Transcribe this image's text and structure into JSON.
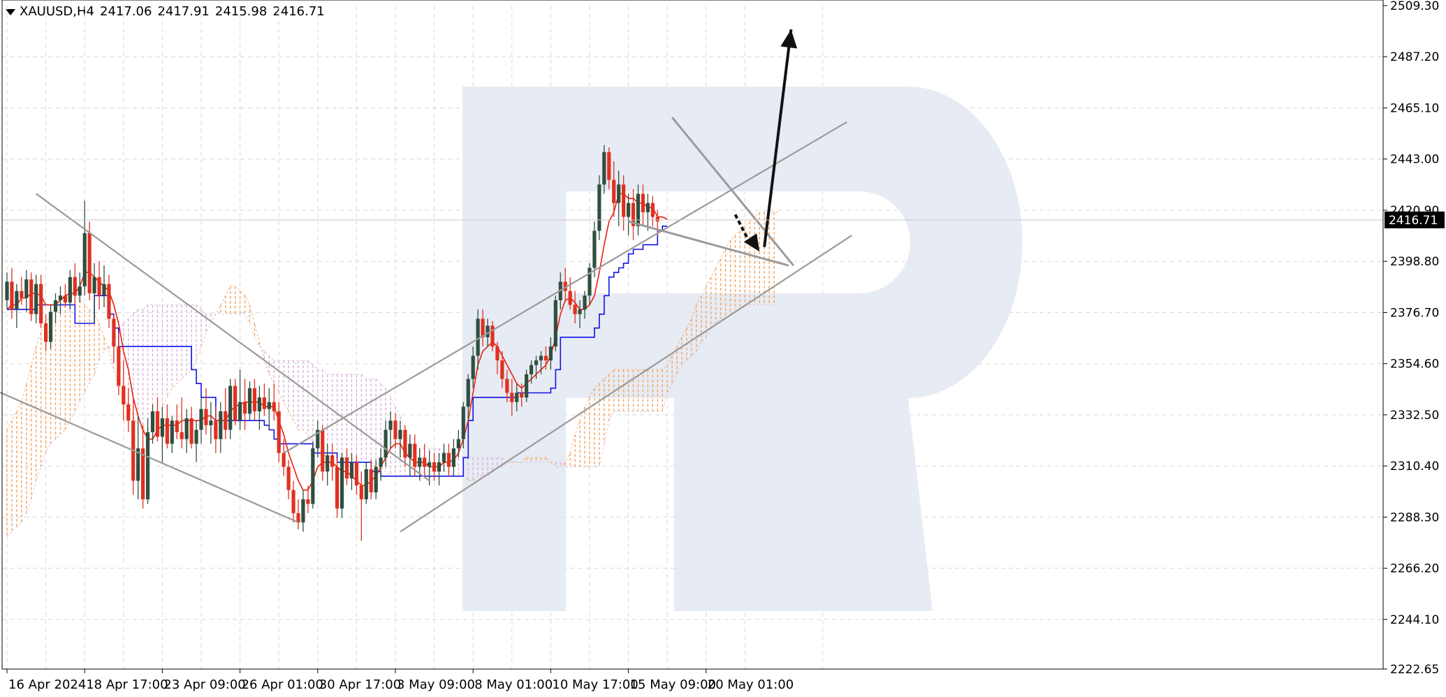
{
  "header": {
    "symbol": "XAUUSD,H4",
    "open": "2417.06",
    "high": "2417.91",
    "low": "2415.98",
    "close": "2416.71"
  },
  "chart_data": {
    "type": "candlestick",
    "symbol": "XAUUSD",
    "timeframe": "H4",
    "ylim": [
      2222.65,
      2509.3
    ],
    "y_ticks": [
      "2509.30",
      "2487.20",
      "2465.10",
      "2443.00",
      "2420.90",
      "2398.80",
      "2376.70",
      "2354.60",
      "2332.50",
      "2310.40",
      "2288.30",
      "2266.20",
      "2244.10",
      "2222.65"
    ],
    "x_ticks": [
      "16 Apr 2024",
      "18 Apr 17:00",
      "23 Apr 09:00",
      "26 Apr 01:00",
      "30 Apr 17:00",
      "3 May 09:00",
      "8 May 01:00",
      "10 May 17:00",
      "15 May 09:00",
      "20 May 01:00"
    ],
    "x_tick_bars": [
      0,
      16,
      32,
      48,
      64,
      80,
      96,
      112,
      128,
      144
    ],
    "current_price": "2416.71",
    "colors": {
      "bull": "#2f4f3f",
      "bear": "#e03020",
      "tenkan": "#e82010",
      "kijun": "#1010e8",
      "cloud_up": "#f4a460",
      "cloud_down": "#d8b0d8",
      "trend": "#9a9a9a",
      "arrow": "#111111",
      "grid": "#d8d8d8"
    },
    "candles": [
      [
        2382,
        2394,
        2378,
        2390
      ],
      [
        2390,
        2396,
        2374,
        2378
      ],
      [
        2378,
        2389,
        2370,
        2386
      ],
      [
        2386,
        2392,
        2380,
        2383
      ],
      [
        2383,
        2395,
        2377,
        2391
      ],
      [
        2391,
        2394,
        2373,
        2376
      ],
      [
        2376,
        2393,
        2372,
        2389
      ],
      [
        2389,
        2393,
        2370,
        2372
      ],
      [
        2372,
        2376,
        2360,
        2364
      ],
      [
        2364,
        2380,
        2361,
        2377
      ],
      [
        2377,
        2385,
        2372,
        2382
      ],
      [
        2382,
        2388,
        2376,
        2384
      ],
      [
        2384,
        2389,
        2379,
        2381
      ],
      [
        2381,
        2395,
        2378,
        2392
      ],
      [
        2392,
        2398,
        2380,
        2384
      ],
      [
        2384,
        2394,
        2381,
        2388
      ],
      [
        2388,
        2425,
        2384,
        2411
      ],
      [
        2411,
        2416,
        2382,
        2385
      ],
      [
        2385,
        2398,
        2372,
        2392
      ],
      [
        2392,
        2399,
        2378,
        2384
      ],
      [
        2384,
        2397,
        2379,
        2389
      ],
      [
        2389,
        2393,
        2370,
        2374
      ],
      [
        2374,
        2376,
        2355,
        2362
      ],
      [
        2362,
        2368,
        2341,
        2345
      ],
      [
        2345,
        2356,
        2330,
        2337
      ],
      [
        2337,
        2344,
        2325,
        2330
      ],
      [
        2330,
        2339,
        2298,
        2304
      ],
      [
        2304,
        2332,
        2296,
        2318
      ],
      [
        2318,
        2328,
        2292,
        2296
      ],
      [
        2296,
        2331,
        2294,
        2325
      ],
      [
        2325,
        2337,
        2320,
        2334
      ],
      [
        2334,
        2340,
        2321,
        2323
      ],
      [
        2323,
        2336,
        2312,
        2331
      ],
      [
        2331,
        2337,
        2318,
        2320
      ],
      [
        2320,
        2332,
        2316,
        2330
      ],
      [
        2330,
        2337,
        2322,
        2325
      ],
      [
        2325,
        2340,
        2318,
        2322
      ],
      [
        2322,
        2335,
        2316,
        2331
      ],
      [
        2331,
        2336,
        2318,
        2320
      ],
      [
        2320,
        2330,
        2312,
        2326
      ],
      [
        2326,
        2340,
        2320,
        2335
      ],
      [
        2335,
        2344,
        2324,
        2328
      ],
      [
        2328,
        2338,
        2320,
        2330
      ],
      [
        2330,
        2336,
        2316,
        2322
      ],
      [
        2322,
        2338,
        2316,
        2334
      ],
      [
        2334,
        2344,
        2322,
        2326
      ],
      [
        2326,
        2348,
        2322,
        2345
      ],
      [
        2345,
        2348,
        2328,
        2330
      ],
      [
        2330,
        2352,
        2326,
        2338
      ],
      [
        2338,
        2348,
        2326,
        2333
      ],
      [
        2333,
        2347,
        2330,
        2344
      ],
      [
        2344,
        2348,
        2330,
        2334
      ],
      [
        2334,
        2345,
        2326,
        2340
      ],
      [
        2340,
        2346,
        2332,
        2335
      ],
      [
        2335,
        2344,
        2326,
        2338
      ],
      [
        2338,
        2346,
        2330,
        2334
      ],
      [
        2334,
        2338,
        2312,
        2316
      ],
      [
        2316,
        2322,
        2306,
        2310
      ],
      [
        2310,
        2313,
        2296,
        2300
      ],
      [
        2300,
        2304,
        2286,
        2290
      ],
      [
        2290,
        2296,
        2283,
        2286
      ],
      [
        2286,
        2300,
        2282,
        2296
      ],
      [
        2296,
        2302,
        2290,
        2294
      ],
      [
        2294,
        2321,
        2292,
        2318
      ],
      [
        2318,
        2330,
        2314,
        2326
      ],
      [
        2326,
        2328,
        2304,
        2308
      ],
      [
        2308,
        2320,
        2302,
        2315
      ],
      [
        2315,
        2320,
        2304,
        2310
      ],
      [
        2310,
        2314,
        2288,
        2292
      ],
      [
        2292,
        2316,
        2288,
        2314
      ],
      [
        2314,
        2318,
        2302,
        2305
      ],
      [
        2305,
        2316,
        2300,
        2312
      ],
      [
        2312,
        2315,
        2298,
        2302
      ],
      [
        2302,
        2308,
        2278,
        2296
      ],
      [
        2296,
        2312,
        2294,
        2309
      ],
      [
        2309,
        2313,
        2296,
        2299
      ],
      [
        2299,
        2313,
        2296,
        2310
      ],
      [
        2310,
        2318,
        2304,
        2314
      ],
      [
        2314,
        2330,
        2310,
        2326
      ],
      [
        2326,
        2334,
        2318,
        2330
      ],
      [
        2330,
        2333,
        2318,
        2322
      ],
      [
        2322,
        2330,
        2314,
        2326
      ],
      [
        2326,
        2328,
        2310,
        2314
      ],
      [
        2314,
        2324,
        2306,
        2320
      ],
      [
        2320,
        2324,
        2306,
        2310
      ],
      [
        2310,
        2318,
        2304,
        2314
      ],
      [
        2314,
        2320,
        2306,
        2310
      ],
      [
        2310,
        2317,
        2302,
        2312
      ],
      [
        2312,
        2316,
        2304,
        2308
      ],
      [
        2308,
        2316,
        2302,
        2312
      ],
      [
        2312,
        2320,
        2308,
        2316
      ],
      [
        2316,
        2320,
        2306,
        2310
      ],
      [
        2310,
        2322,
        2306,
        2318
      ],
      [
        2318,
        2326,
        2314,
        2322
      ],
      [
        2322,
        2338,
        2318,
        2336
      ],
      [
        2336,
        2350,
        2330,
        2348
      ],
      [
        2348,
        2362,
        2344,
        2358
      ],
      [
        2358,
        2378,
        2352,
        2374
      ],
      [
        2374,
        2378,
        2362,
        2366
      ],
      [
        2366,
        2374,
        2362,
        2371
      ],
      [
        2371,
        2373,
        2360,
        2362
      ],
      [
        2362,
        2364,
        2350,
        2356
      ],
      [
        2356,
        2360,
        2344,
        2348
      ],
      [
        2348,
        2352,
        2338,
        2342
      ],
      [
        2342,
        2348,
        2332,
        2338
      ],
      [
        2338,
        2346,
        2334,
        2342
      ],
      [
        2342,
        2346,
        2336,
        2340
      ],
      [
        2340,
        2352,
        2338,
        2350
      ],
      [
        2350,
        2356,
        2346,
        2354
      ],
      [
        2354,
        2358,
        2348,
        2356
      ],
      [
        2356,
        2360,
        2350,
        2358
      ],
      [
        2358,
        2362,
        2352,
        2356
      ],
      [
        2356,
        2366,
        2352,
        2362
      ],
      [
        2362,
        2384,
        2360,
        2382
      ],
      [
        2382,
        2394,
        2378,
        2390
      ],
      [
        2390,
        2396,
        2382,
        2386
      ],
      [
        2386,
        2392,
        2378,
        2380
      ],
      [
        2380,
        2386,
        2372,
        2376
      ],
      [
        2376,
        2382,
        2370,
        2378
      ],
      [
        2378,
        2386,
        2374,
        2384
      ],
      [
        2384,
        2398,
        2380,
        2396
      ],
      [
        2396,
        2416,
        2392,
        2412
      ],
      [
        2412,
        2436,
        2408,
        2432
      ],
      [
        2432,
        2449,
        2428,
        2446
      ],
      [
        2446,
        2448,
        2430,
        2434
      ],
      [
        2434,
        2442,
        2418,
        2424
      ],
      [
        2424,
        2438,
        2414,
        2432
      ],
      [
        2432,
        2436,
        2412,
        2418
      ],
      [
        2418,
        2428,
        2410,
        2424
      ],
      [
        2424,
        2430,
        2408,
        2414
      ],
      [
        2414,
        2432,
        2410,
        2428
      ],
      [
        2428,
        2432,
        2414,
        2420
      ],
      [
        2420,
        2428,
        2412,
        2424
      ],
      [
        2424,
        2427,
        2414,
        2418
      ],
      [
        2418,
        2421,
        2410,
        2416
      ]
    ],
    "tenkan": [
      2378,
      2380,
      2380,
      2383,
      2383,
      2385,
      2385,
      2384,
      2380,
      2380,
      2380,
      2382,
      2384,
      2385,
      2385,
      2388,
      2394,
      2394,
      2392,
      2390,
      2388,
      2386,
      2380,
      2372,
      2360,
      2352,
      2340,
      2332,
      2326,
      2322,
      2322,
      2326,
      2328,
      2328,
      2328,
      2328,
      2330,
      2330,
      2330,
      2330,
      2330,
      2332,
      2332,
      2330,
      2330,
      2330,
      2334,
      2336,
      2337,
      2338,
      2338,
      2338,
      2338,
      2336,
      2336,
      2336,
      2330,
      2324,
      2316,
      2310,
      2304,
      2300,
      2300,
      2304,
      2310,
      2312,
      2312,
      2312,
      2310,
      2308,
      2308,
      2306,
      2304,
      2302,
      2302,
      2304,
      2306,
      2310,
      2314,
      2318,
      2320,
      2320,
      2316,
      2314,
      2312,
      2312,
      2312,
      2310,
      2310,
      2310,
      2312,
      2312,
      2313,
      2316,
      2322,
      2330,
      2342,
      2354,
      2360,
      2362,
      2364,
      2362,
      2358,
      2354,
      2350,
      2346,
      2344,
      2346,
      2348,
      2350,
      2352,
      2354,
      2358,
      2366,
      2376,
      2382,
      2383,
      2381,
      2378,
      2378,
      2380,
      2384,
      2394,
      2406,
      2416,
      2420,
      2428,
      2428,
      2426,
      2426,
      2424,
      2424,
      2422,
      2422,
      2418,
      2418,
      2417
    ],
    "kijun": [
      2378,
      2378,
      2378,
      2378,
      2378,
      2378,
      2380,
      2380,
      2380,
      2380,
      2380,
      2380,
      2380,
      2380,
      2372,
      2372,
      2372,
      2372,
      2384,
      2384,
      2384,
      2376,
      2370,
      2362,
      2362,
      2362,
      2362,
      2362,
      2362,
      2362,
      2362,
      2362,
      2362,
      2362,
      2362,
      2362,
      2362,
      2362,
      2352,
      2346,
      2340,
      2340,
      2340,
      2330,
      2330,
      2330,
      2330,
      2330,
      2330,
      2330,
      2330,
      2330,
      2330,
      2328,
      2326,
      2322,
      2320,
      2320,
      2320,
      2320,
      2320,
      2320,
      2320,
      2316,
      2316,
      2316,
      2316,
      2316,
      2312,
      2312,
      2312,
      2312,
      2312,
      2312,
      2312,
      2308,
      2308,
      2306,
      2306,
      2306,
      2306,
      2306,
      2306,
      2306,
      2306,
      2306,
      2306,
      2306,
      2306,
      2306,
      2306,
      2306,
      2306,
      2306,
      2314,
      2330,
      2340,
      2340,
      2340,
      2340,
      2340,
      2340,
      2340,
      2340,
      2340,
      2342,
      2342,
      2342,
      2342,
      2342,
      2342,
      2342,
      2344,
      2352,
      2366,
      2366,
      2366,
      2366,
      2366,
      2366,
      2366,
      2370,
      2376,
      2384,
      2392,
      2394,
      2396,
      2398,
      2402,
      2404,
      2404,
      2406,
      2406,
      2406,
      2412,
      2414,
      2414
    ],
    "cloud_a": [
      2326,
      2330,
      2334,
      2338,
      2346,
      2354,
      2362,
      2368,
      2372,
      2376,
      2378,
      2380,
      2382,
      2384,
      2384,
      2382,
      2380,
      2378,
      2376,
      2372,
      2366,
      2360,
      2352,
      2344,
      2340,
      2336,
      2332,
      2328,
      2326,
      2326,
      2328,
      2332,
      2336,
      2340,
      2344,
      2346,
      2348,
      2350,
      2352,
      2356,
      2362,
      2368,
      2372,
      2376,
      2380,
      2384,
      2388,
      2388,
      2386,
      2384,
      2380,
      2372,
      2364,
      2356,
      2350,
      2346,
      2342,
      2338,
      2334,
      2330,
      2326,
      2326,
      2324,
      2320,
      2318,
      2316,
      2314,
      2314,
      2314,
      2314,
      2314,
      2314,
      2312,
      2312,
      2312,
      2312,
      2310,
      2310,
      2308,
      2306,
      2306,
      2306,
      2306,
      2306,
      2306,
      2306,
      2308,
      2308,
      2308,
      2308,
      2308,
      2308,
      2306,
      2306,
      2306,
      2304,
      2304,
      2306,
      2306,
      2306,
      2308,
      2310,
      2310,
      2312,
      2312,
      2312,
      2312,
      2314,
      2314,
      2314,
      2314,
      2314,
      2312,
      2310,
      2310,
      2312,
      2316,
      2324,
      2330,
      2336,
      2340,
      2344,
      2346,
      2348,
      2350,
      2352,
      2352,
      2352,
      2352,
      2352,
      2352,
      2352,
      2352,
      2352,
      2352,
      2352,
      2354,
      2358,
      2362,
      2366,
      2370,
      2374,
      2380,
      2384,
      2388,
      2392,
      2396,
      2400,
      2404,
      2408,
      2410,
      2412,
      2414,
      2416,
      2418,
      2420,
      2420,
      2420,
      2420,
      2420
    ],
    "cloud_b": [
      2280,
      2282,
      2284,
      2286,
      2290,
      2296,
      2304,
      2310,
      2316,
      2320,
      2322,
      2324,
      2326,
      2330,
      2334,
      2338,
      2342,
      2346,
      2350,
      2356,
      2360,
      2362,
      2364,
      2368,
      2372,
      2374,
      2376,
      2378,
      2378,
      2380,
      2380,
      2380,
      2380,
      2380,
      2380,
      2380,
      2380,
      2380,
      2380,
      2380,
      2378,
      2376,
      2376,
      2376,
      2376,
      2376,
      2376,
      2376,
      2376,
      2376,
      2372,
      2366,
      2362,
      2360,
      2358,
      2356,
      2356,
      2356,
      2356,
      2356,
      2356,
      2356,
      2356,
      2354,
      2352,
      2352,
      2350,
      2350,
      2350,
      2350,
      2350,
      2350,
      2350,
      2350,
      2348,
      2348,
      2348,
      2346,
      2344,
      2340,
      2336,
      2332,
      2326,
      2320,
      2318,
      2318,
      2318,
      2318,
      2318,
      2318,
      2316,
      2316,
      2316,
      2316,
      2314,
      2314,
      2314,
      2314,
      2314,
      2314,
      2314,
      2314,
      2314,
      2312,
      2312,
      2312,
      2312,
      2312,
      2312,
      2312,
      2312,
      2312,
      2312,
      2312,
      2312,
      2310,
      2310,
      2310,
      2310,
      2310,
      2310,
      2310,
      2310,
      2320,
      2330,
      2334,
      2334,
      2334,
      2334,
      2334,
      2334,
      2334,
      2334,
      2334,
      2334,
      2334,
      2342,
      2346,
      2350,
      2354,
      2356,
      2358,
      2360,
      2364,
      2366,
      2370,
      2372,
      2374,
      2374,
      2376,
      2378,
      2378,
      2380,
      2380,
      2380,
      2380,
      2380,
      2380,
      2380
    ]
  }
}
